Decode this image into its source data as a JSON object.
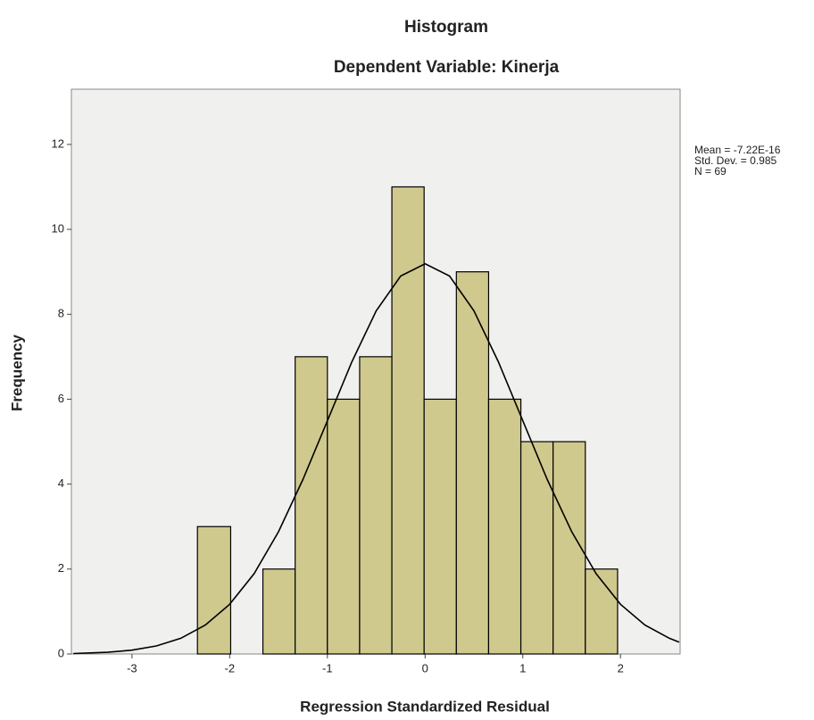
{
  "chart_data": {
    "type": "histogram",
    "title": "Histogram",
    "subtitle": "Dependent Variable: Kinerja",
    "x_label": "Regression Standardized Residual",
    "y_label": "Frequency",
    "stats": [
      "Mean = -7.22E-16",
      "Std. Dev. = 0.985",
      "N = 69"
    ],
    "bins": [
      -2.33,
      -1.99,
      -1.66,
      -1.33,
      -1.0,
      -0.67,
      -0.34,
      -0.01,
      0.32,
      0.65,
      0.98,
      1.31,
      1.64,
      1.97
    ],
    "values": [
      3,
      0,
      2,
      7,
      6,
      7,
      11,
      6,
      9,
      6,
      5,
      5,
      2
    ],
    "color": "#cfc98e",
    "curve": {
      "x": [
        -3.6,
        -3.25,
        -3.0,
        -2.75,
        -2.5,
        -2.25,
        -2.0,
        -1.75,
        -1.5,
        -1.25,
        -1.0,
        -0.75,
        -0.5,
        -0.25,
        0,
        0.25,
        0.5,
        0.75,
        1.0,
        1.25,
        1.5,
        1.75,
        2.0,
        2.25,
        2.5,
        2.6
      ],
      "values": [
        0.01,
        0.04,
        0.09,
        0.19,
        0.37,
        0.68,
        1.17,
        1.89,
        2.88,
        4.11,
        5.49,
        6.88,
        8.08,
        8.9,
        9.19,
        8.9,
        8.08,
        6.88,
        5.49,
        4.11,
        2.88,
        1.89,
        1.17,
        0.68,
        0.37,
        0.28
      ],
      "color": "#000000"
    },
    "xlim": [
      -3.62,
      2.61
    ],
    "xticks": [
      -3,
      -2,
      -1,
      0,
      1,
      2
    ],
    "ylim": [
      0,
      13.3
    ],
    "yticks": [
      0,
      2,
      4,
      6,
      8,
      10,
      12
    ],
    "grid": false
  }
}
